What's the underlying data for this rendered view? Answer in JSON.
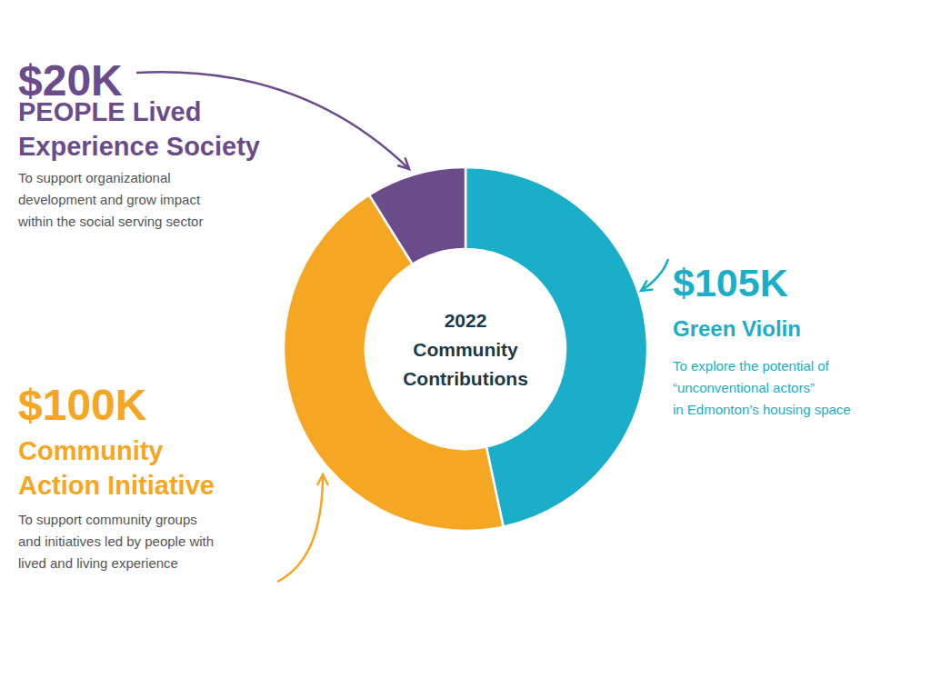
{
  "chart_data": {
    "type": "pie",
    "center_text": "2022\nCommunity\nContributions",
    "center_text_color": "#1A3A4A",
    "categories": [
      "Green Violin",
      "Community\nAction Initiative",
      "PEOPLE Lived\nExperience Society"
    ],
    "values": [
      105,
      100,
      20
    ],
    "value_labels": [
      "$105K",
      "$100K",
      "$20K"
    ],
    "data_labels": true,
    "colors": [
      "#1BAEC8",
      "#F5A623",
      "#6B4C8B"
    ],
    "annotations": [
      {
        "text": "To explore the potential of\n“unconventional actors”\nin Edmonton’s housing space",
        "color": "#1BAEC8"
      },
      {
        "text": "To support community groups\nand initiatives led by people with\nlived and living experience",
        "color": "#555555"
      },
      {
        "text": "To support organizational\ndevelopment and grow impact\nwithin the social serving sector",
        "color": "#555555"
      }
    ]
  }
}
